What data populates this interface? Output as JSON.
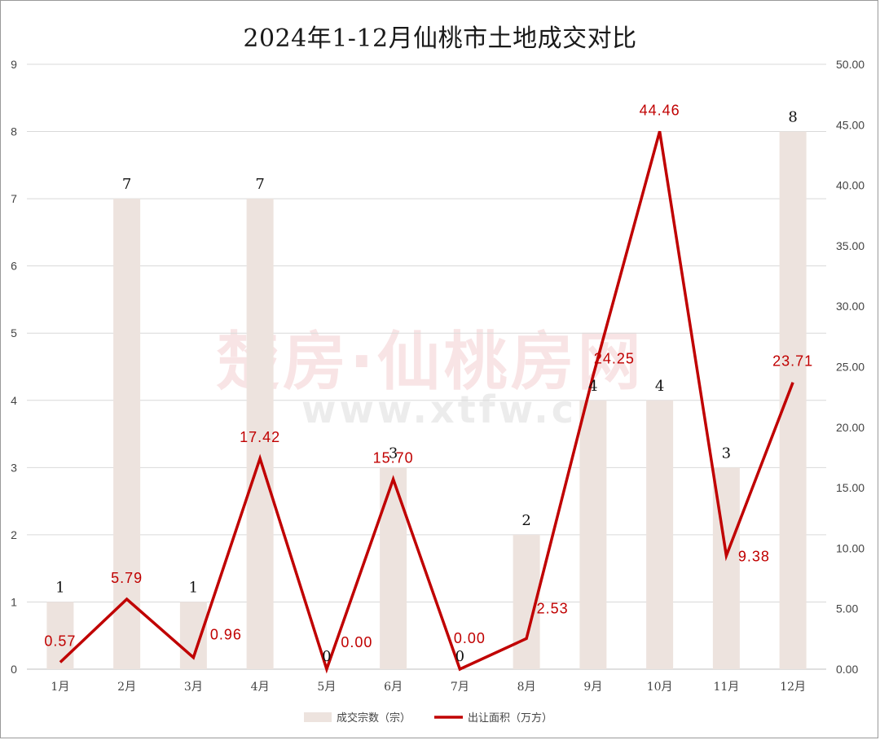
{
  "chart_data": {
    "type": "bar",
    "title": "2024年1-12月仙桃市土地成交对比",
    "categories": [
      "1月",
      "2月",
      "3月",
      "4月",
      "5月",
      "6月",
      "7月",
      "8月",
      "9月",
      "10月",
      "11月",
      "12月"
    ],
    "series": [
      {
        "name": "成交宗数（宗）",
        "type": "bar",
        "axis": "left",
        "color": "#ede3de",
        "values": [
          1,
          7,
          1,
          7,
          0,
          3,
          0,
          2,
          4,
          4,
          3,
          8
        ],
        "labels": [
          "1",
          "7",
          "1",
          "7",
          "0",
          "3",
          "0",
          "2",
          "4",
          "4",
          "3",
          "8"
        ]
      },
      {
        "name": "出让面积（万方）",
        "type": "line",
        "axis": "right",
        "color": "#c00000",
        "values": [
          0.57,
          5.79,
          0.96,
          17.42,
          0.0,
          15.7,
          0.0,
          2.53,
          24.25,
          44.46,
          9.38,
          23.71
        ],
        "labels": [
          "0.57",
          "5.79",
          "0.96",
          "17.42",
          "0.00",
          "15.70",
          "0.00",
          "2.53",
          "24.25",
          "44.46",
          "9.38",
          "23.71"
        ]
      }
    ],
    "y_left": {
      "range": [
        0,
        9
      ],
      "ticks": [
        "0",
        "1",
        "2",
        "3",
        "4",
        "5",
        "6",
        "7",
        "8",
        "9"
      ]
    },
    "y_right": {
      "range": [
        0,
        50
      ],
      "ticks": [
        "0.00",
        "5.00",
        "10.00",
        "15.00",
        "20.00",
        "25.00",
        "30.00",
        "35.00",
        "40.00",
        "45.00",
        "50.00"
      ]
    },
    "grid": true,
    "legend_position": "bottom",
    "watermark": [
      "楚房·仙桃房网",
      "www.xtfw.cn"
    ]
  }
}
